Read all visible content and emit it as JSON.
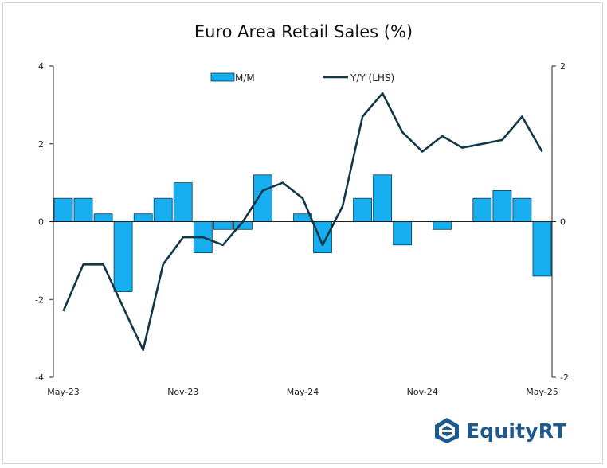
{
  "chart_data": {
    "type": "bar+line",
    "title": "Euro Area Retail Sales (%)",
    "categories": [
      "May-23",
      "Jun-23",
      "Jul-23",
      "Aug-23",
      "Sep-23",
      "Oct-23",
      "Nov-23",
      "Dec-23",
      "Jan-24",
      "Feb-24",
      "Mar-24",
      "Apr-24",
      "May-24",
      "Jun-24",
      "Jul-24",
      "Aug-24",
      "Sep-24",
      "Oct-24",
      "Nov-24",
      "Dec-24",
      "Jan-25",
      "Feb-25",
      "Mar-25",
      "Apr-25",
      "May-25"
    ],
    "x_tick_labels": [
      "May-23",
      "Nov-23",
      "May-24",
      "Nov-24",
      "May-25"
    ],
    "x_tick_indices": [
      0,
      6,
      12,
      18,
      24
    ],
    "series": [
      {
        "name": "M/M",
        "type": "bar",
        "axis": "left",
        "color": "#16aeee",
        "values": [
          0.6,
          0.6,
          0.2,
          -1.8,
          0.2,
          0.6,
          1.0,
          -0.8,
          -0.2,
          -0.2,
          1.2,
          0.0,
          0.2,
          -0.8,
          0.0,
          0.6,
          1.2,
          -0.6,
          0.0,
          -0.2,
          0.0,
          0.6,
          0.8,
          0.6,
          -1.4
        ]
      },
      {
        "name": "Y/Y (LHS)",
        "type": "line",
        "axis": "right",
        "color": "#123746",
        "values": [
          -1.15,
          -0.55,
          -0.55,
          -1.1,
          -1.65,
          -0.55,
          -0.2,
          -0.2,
          -0.3,
          0.0,
          0.4,
          0.5,
          0.3,
          -0.3,
          0.2,
          1.35,
          1.65,
          1.15,
          0.9,
          1.1,
          0.95,
          1.0,
          1.05,
          1.35,
          0.9
        ]
      }
    ],
    "left_axis": {
      "ylim": [
        -4,
        4
      ],
      "ticks": [
        "-4",
        "-2",
        "0",
        "2",
        "4"
      ],
      "values": [
        -4,
        -2,
        0,
        2,
        4
      ]
    },
    "right_axis": {
      "ylim": [
        -2,
        2
      ],
      "ticks": [
        "-2",
        "0",
        "2"
      ],
      "values": [
        -2,
        0,
        2
      ]
    },
    "grid": false,
    "legend_position": "top-center"
  },
  "brand": {
    "name": "EquityRT",
    "color": "#1f5a8e"
  }
}
